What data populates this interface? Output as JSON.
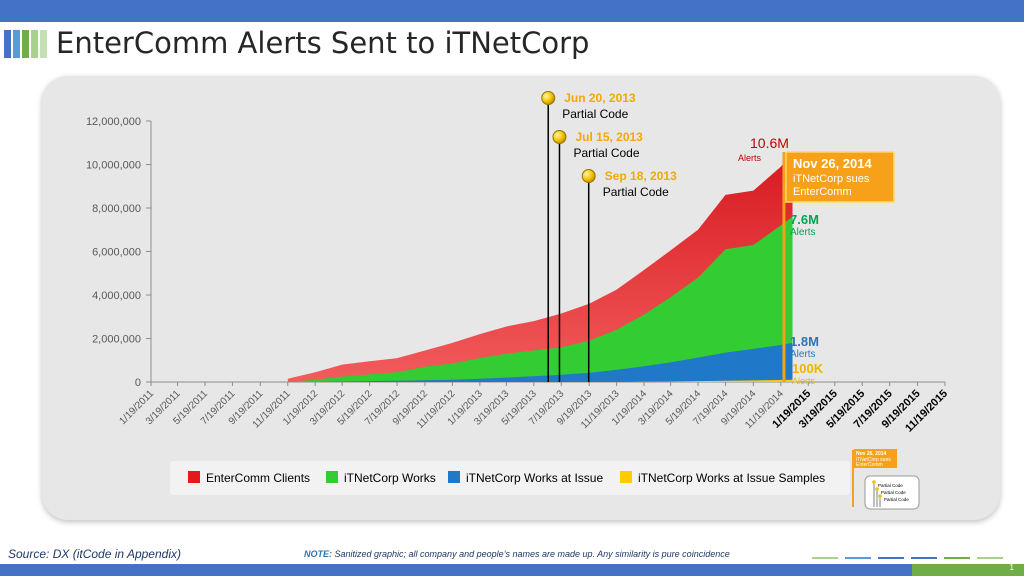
{
  "slide": {
    "title": "EnterComm Alerts Sent to iTNetCorp",
    "source": "Source: DX (itCode in Appendix)",
    "note_label": "NOTE:",
    "note_text": " Sanitized graphic; all company and people’s names are made up. Any similarity is pure coincidence",
    "page_number": "1",
    "colors": {
      "accent_blue": "#4472c4",
      "accent_green": "#70ad47"
    }
  },
  "chart_data": {
    "type": "area",
    "stacking": "overlapping",
    "x_tick_labels": [
      "1/19/2011",
      "3/19/2011",
      "5/19/2011",
      "7/19/2011",
      "9/19/2011",
      "11/19/2011",
      "1/19/2012",
      "3/19/2012",
      "5/19/2012",
      "7/19/2012",
      "9/19/2012",
      "11/19/2012",
      "1/19/2013",
      "3/19/2013",
      "5/19/2013",
      "7/19/2013",
      "9/19/2013",
      "11/19/2013",
      "1/19/2014",
      "3/19/2014",
      "5/19/2014",
      "7/19/2014",
      "9/19/2014",
      "11/19/2014",
      "1/19/2015",
      "3/19/2015",
      "5/19/2015",
      "7/19/2015",
      "9/19/2015",
      "11/19/2015"
    ],
    "bold_x_tick_labels": [
      "1/19/2015",
      "3/19/2015",
      "5/19/2015",
      "7/19/2015",
      "9/19/2015",
      "11/19/2015"
    ],
    "y_tick_labels": [
      "0",
      "2,000,000",
      "4,000,000",
      "6,000,000",
      "8,000,000",
      "10,000,000",
      "12,000,000"
    ],
    "ylim": [
      0,
      12000000
    ],
    "grid": false,
    "legend_position": "bottom",
    "series": [
      {
        "name": "EnterComm Clients",
        "color": "#e31a1c",
        "x": [
          "11/19/2011",
          "1/19/2012",
          "3/19/2012",
          "5/19/2012",
          "7/19/2012",
          "9/19/2012",
          "11/19/2012",
          "1/19/2013",
          "3/19/2013",
          "5/19/2013",
          "7/19/2013",
          "9/19/2013",
          "11/19/2013",
          "1/19/2014",
          "3/19/2014",
          "5/19/2014",
          "7/19/2014",
          "9/19/2014",
          "11/19/2014",
          "12/15/2014"
        ],
        "values": [
          150000,
          450000,
          800000,
          950000,
          1100000,
          1450000,
          1800000,
          2200000,
          2550000,
          2800000,
          3150000,
          3600000,
          4250000,
          5150000,
          6050000,
          7000000,
          8600000,
          8800000,
          9900000,
          10600000
        ]
      },
      {
        "name": "iTNetCorp Works",
        "color": "#33cc33",
        "x": [
          "11/19/2011",
          "1/19/2012",
          "3/19/2012",
          "5/19/2012",
          "7/19/2012",
          "9/19/2012",
          "11/19/2012",
          "1/19/2013",
          "3/19/2013",
          "5/19/2013",
          "7/19/2013",
          "9/19/2013",
          "11/19/2013",
          "1/19/2014",
          "3/19/2014",
          "5/19/2014",
          "7/19/2014",
          "9/19/2014",
          "11/19/2014",
          "12/15/2014"
        ],
        "values": [
          0,
          100000,
          250000,
          350000,
          450000,
          700000,
          850000,
          1100000,
          1300000,
          1450000,
          1600000,
          1900000,
          2400000,
          3100000,
          3900000,
          4800000,
          6100000,
          6300000,
          7200000,
          7600000
        ]
      },
      {
        "name": "iTNetCorp Works at Issue",
        "color": "#1f78c8",
        "x": [
          "11/19/2011",
          "1/19/2012",
          "3/19/2012",
          "5/19/2012",
          "7/19/2012",
          "9/19/2012",
          "11/19/2012",
          "1/19/2013",
          "3/19/2013",
          "5/19/2013",
          "7/19/2013",
          "9/19/2013",
          "11/19/2013",
          "1/19/2014",
          "3/19/2014",
          "5/19/2014",
          "7/19/2014",
          "9/19/2014",
          "11/19/2014",
          "12/15/2014"
        ],
        "values": [
          0,
          0,
          20000,
          40000,
          60000,
          80000,
          100000,
          150000,
          200000,
          260000,
          330000,
          420000,
          560000,
          720000,
          900000,
          1120000,
          1350000,
          1520000,
          1700000,
          1800000
        ]
      },
      {
        "name": "iTNetCorp Works at Issue Samples",
        "color": "#ffcc00",
        "x": [
          "11/19/2013",
          "1/19/2014",
          "3/19/2014",
          "5/19/2014",
          "7/19/2014",
          "9/19/2014",
          "11/19/2014",
          "12/15/2014"
        ],
        "values": [
          0,
          10000,
          20000,
          40000,
          60000,
          75000,
          90000,
          100000
        ]
      }
    ],
    "end_labels": [
      {
        "value": "10.6M",
        "unit": "Alerts",
        "color": "#c00000"
      },
      {
        "value": "7.6M",
        "unit": "Alerts",
        "color": "#00a651"
      },
      {
        "value": "1.8M",
        "unit": "Alerts",
        "color": "#2e75b6"
      },
      {
        "value": "100K",
        "unit": "Alerts",
        "color": "#f0b400"
      }
    ],
    "annotations": [
      {
        "date": "Jun 20, 2013",
        "text": "Partial Code",
        "x": "6/20/2013"
      },
      {
        "date": "Jul 15, 2013",
        "text": "Partial Code",
        "x": "7/15/2013"
      },
      {
        "date": "Sep 18, 2013",
        "text": "Partial Code",
        "x": "9/18/2013"
      }
    ],
    "callout": {
      "line1": "Nov 26, 2014",
      "line2": "iTNetCorp sues",
      "line3": "EnterComm",
      "x": "11/26/2014",
      "color": "#f7a11a"
    },
    "thumbnail": {
      "callout_line1": "Nov 26, 2014",
      "callout_line2": "iTNetCorp sues",
      "callout_line3": "EnterComm",
      "items": [
        "Partial Code",
        "Partial Code",
        "Partial Code"
      ]
    }
  }
}
